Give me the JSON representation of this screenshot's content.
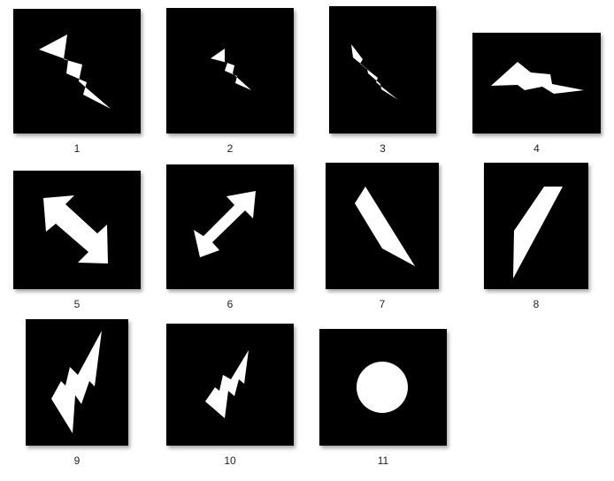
{
  "window": {
    "background": "#ffffff"
  },
  "thumbnails": [
    {
      "label": "1",
      "icon": "lightning-bolt-icon",
      "frame_color": "#000000",
      "shape_color": "#ffffff"
    },
    {
      "label": "2",
      "icon": "small-lightning-bolt-icon",
      "frame_color": "#000000",
      "shape_color": "#ffffff"
    },
    {
      "label": "3",
      "icon": "narrow-lightning-bolt-icon",
      "frame_color": "#000000",
      "shape_color": "#ffffff"
    },
    {
      "label": "4",
      "icon": "flat-lightning-bolt-icon",
      "frame_color": "#000000",
      "shape_color": "#ffffff"
    },
    {
      "label": "5",
      "icon": "diagonal-double-arrow-icon",
      "frame_color": "#000000",
      "shape_color": "#ffffff"
    },
    {
      "label": "6",
      "icon": "diagonal-double-arrow-icon",
      "frame_color": "#000000",
      "shape_color": "#ffffff"
    },
    {
      "label": "7",
      "icon": "slanted-parallelogram-icon",
      "frame_color": "#000000",
      "shape_color": "#ffffff"
    },
    {
      "label": "8",
      "icon": "slanted-parallelogram-icon",
      "frame_color": "#000000",
      "shape_color": "#ffffff"
    },
    {
      "label": "9",
      "icon": "upward-lightning-bolt-icon",
      "frame_color": "#000000",
      "shape_color": "#ffffff"
    },
    {
      "label": "10",
      "icon": "upward-lightning-bolt-icon",
      "frame_color": "#000000",
      "shape_color": "#ffffff"
    },
    {
      "label": "11",
      "icon": "circle-icon",
      "frame_color": "#000000",
      "shape_color": "#ffffff"
    }
  ]
}
